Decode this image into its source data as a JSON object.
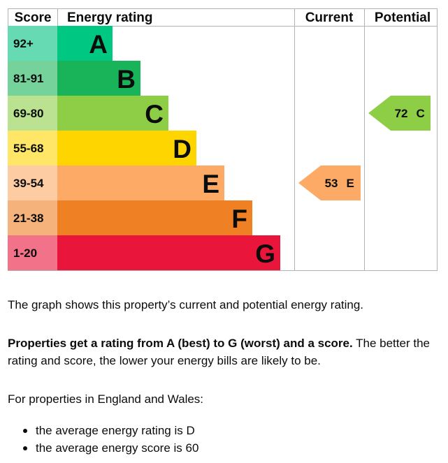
{
  "chart_data": {
    "type": "bar",
    "headers": {
      "score": "Score",
      "rating": "Energy rating",
      "current": "Current",
      "potential": "Potential"
    },
    "bands": [
      {
        "range": "92+",
        "letter": "A",
        "color": "#00c781",
        "score_color": "#66dbb3"
      },
      {
        "range": "81-91",
        "letter": "B",
        "color": "#19b459",
        "score_color": "#75d29b"
      },
      {
        "range": "69-80",
        "letter": "C",
        "color": "#8dce46",
        "score_color": "#bbe290"
      },
      {
        "range": "55-68",
        "letter": "D",
        "color": "#ffd500",
        "score_color": "#ffe666"
      },
      {
        "range": "39-54",
        "letter": "E",
        "color": "#fcaa65",
        "score_color": "#fdcca3"
      },
      {
        "range": "21-38",
        "letter": "F",
        "color": "#ef8023",
        "score_color": "#f5b37b"
      },
      {
        "range": "1-20",
        "letter": "G",
        "color": "#e9153b",
        "score_color": "#f27389"
      }
    ],
    "current": {
      "score": 53,
      "letter": "E",
      "color": "#fcaa65"
    },
    "potential": {
      "score": 72,
      "letter": "C",
      "color": "#8dce46"
    }
  },
  "description": {
    "line1": "The graph shows this property’s current and potential energy rating.",
    "line2_strong": "Properties get a rating from A (best) to G (worst) and a score.",
    "line2_rest": " The better the rating and score, the lower your energy bills are likely to be.",
    "line3": "For properties in England and Wales:",
    "facts": [
      "the average energy rating is D",
      "the average energy score is 60"
    ]
  }
}
